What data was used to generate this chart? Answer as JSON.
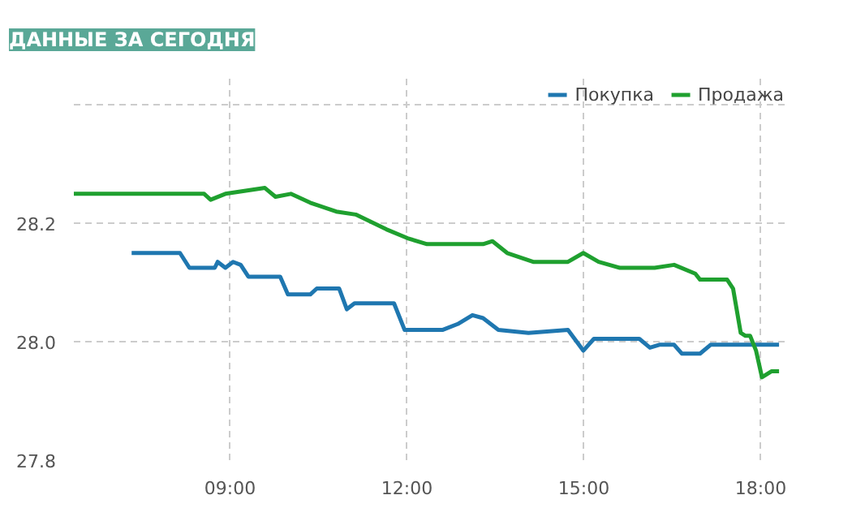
{
  "chart_data": {
    "type": "line",
    "title": "ДАННЫЕ ЗА СЕГОДНЯ",
    "xlim": [
      6.35,
      18.46
    ],
    "xticks": [
      {
        "value": 9,
        "label": "09:00"
      },
      {
        "value": 12,
        "label": "12:00"
      },
      {
        "value": 15,
        "label": "15:00"
      },
      {
        "value": 18,
        "label": "18:00"
      }
    ],
    "ylim": [
      27.8,
      28.45
    ],
    "yticks": [
      27.8,
      {
        "value": 28.0,
        "label": "28.0"
      },
      28.2,
      {
        "value": 28.4,
        "label": null
      }
    ],
    "grid": true,
    "legend": "top right",
    "marker": "none",
    "line_style": "solid",
    "series": [
      {
        "name": "Покупка",
        "color": "#1f77b0",
        "x": [
          7.33,
          8.15,
          8.31,
          8.74,
          8.79,
          8.92,
          9.05,
          9.18,
          9.31,
          9.85,
          9.98,
          10.36,
          10.47,
          10.85,
          10.98,
          11.11,
          11.65,
          11.78,
          11.96,
          12.6,
          12.86,
          13.11,
          13.29,
          13.55,
          14.06,
          14.73,
          14.99,
          15.17,
          15.94,
          16.12,
          16.28,
          16.53,
          16.66,
          16.97,
          17.15,
          18.31
        ],
        "values": [
          28.15,
          28.15,
          28.125,
          28.125,
          28.135,
          28.125,
          28.135,
          28.13,
          28.11,
          28.11,
          28.08,
          28.08,
          28.09,
          28.09,
          28.055,
          28.065,
          28.065,
          28.065,
          28.02,
          28.02,
          28.03,
          28.045,
          28.04,
          28.02,
          28.015,
          28.02,
          27.985,
          28.005,
          28.005,
          27.99,
          27.995,
          27.995,
          27.98,
          27.98,
          27.995,
          27.995
        ]
      },
      {
        "name": "Продажа",
        "color": "#1fa02f",
        "x": [
          6.35,
          8.56,
          8.67,
          8.92,
          9.59,
          9.77,
          10.03,
          10.36,
          10.8,
          11.13,
          11.65,
          12.01,
          12.34,
          12.86,
          13.29,
          13.45,
          13.7,
          14.14,
          14.73,
          14.99,
          15.25,
          15.61,
          16.2,
          16.53,
          16.89,
          16.97,
          17.43,
          17.53,
          17.66,
          17.74,
          17.82,
          17.92,
          18.02,
          18.18,
          18.31
        ],
        "values": [
          28.25,
          28.25,
          28.24,
          28.25,
          28.26,
          28.245,
          28.25,
          28.235,
          28.22,
          28.215,
          28.19,
          28.175,
          28.165,
          28.165,
          28.165,
          28.17,
          28.15,
          28.135,
          28.135,
          28.15,
          28.135,
          28.125,
          28.125,
          28.13,
          28.115,
          28.105,
          28.105,
          28.09,
          28.015,
          28.01,
          28.01,
          27.985,
          27.94,
          27.95,
          27.95
        ]
      }
    ]
  }
}
